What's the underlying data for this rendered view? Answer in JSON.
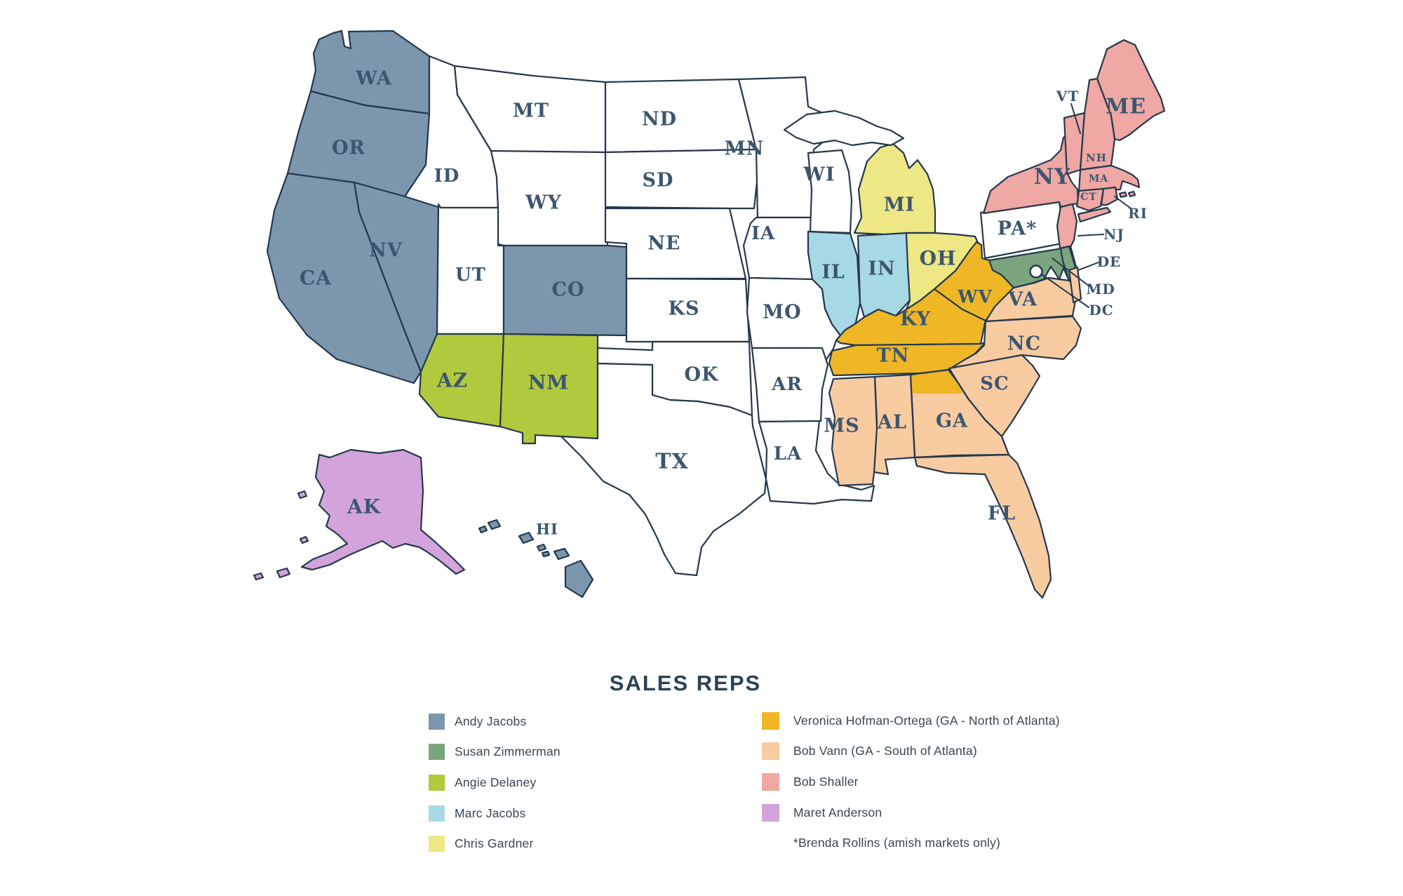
{
  "legend": {
    "title": "SALES REPS",
    "footnote": "*Brenda Rollins (amish markets only)"
  },
  "reps": {
    "andy": {
      "name": "Andy Jacobs",
      "color": "#7B96AD"
    },
    "susan": {
      "name": "Susan Zimmerman",
      "color": "#7BA57E"
    },
    "angie": {
      "name": "Angie Delaney",
      "color": "#B0CA3E"
    },
    "marc": {
      "name": "Marc Jacobs",
      "color": "#A7D8E5"
    },
    "chris": {
      "name": "Chris Gardner",
      "color": "#EEE884"
    },
    "veronica": {
      "name": "Veronica Hofman-Ortega (GA - North of Atlanta)",
      "color": "#EFB726"
    },
    "bobvann": {
      "name": "Bob Vann (GA - South of Atlanta)",
      "color": "#F8CBA1"
    },
    "bobshaller": {
      "name": "Bob Shaller",
      "color": "#EFA8A3"
    },
    "maret": {
      "name": "Maret Anderson",
      "color": "#D2A4DB"
    }
  },
  "map": {
    "border_color": "#24384E",
    "label_color": "#3C566F",
    "white_fill": "#FFFFFF",
    "states": [
      {
        "id": "WA",
        "label": "WA",
        "rep": "andy"
      },
      {
        "id": "OR",
        "label": "OR",
        "rep": "andy"
      },
      {
        "id": "CA",
        "label": "CA",
        "rep": "andy"
      },
      {
        "id": "NV",
        "label": "NV",
        "rep": "andy"
      },
      {
        "id": "ID",
        "label": "ID",
        "rep": null
      },
      {
        "id": "MT",
        "label": "MT",
        "rep": null
      },
      {
        "id": "WY",
        "label": "WY",
        "rep": null
      },
      {
        "id": "UT",
        "label": "UT",
        "rep": null
      },
      {
        "id": "CO",
        "label": "CO",
        "rep": "andy"
      },
      {
        "id": "AZ",
        "label": "AZ",
        "rep": "angie"
      },
      {
        "id": "NM",
        "label": "NM",
        "rep": "angie"
      },
      {
        "id": "ND",
        "label": "ND",
        "rep": null
      },
      {
        "id": "SD",
        "label": "SD",
        "rep": null
      },
      {
        "id": "NE",
        "label": "NE",
        "rep": null
      },
      {
        "id": "KS",
        "label": "KS",
        "rep": null
      },
      {
        "id": "OK",
        "label": "OK",
        "rep": null
      },
      {
        "id": "TX",
        "label": "TX",
        "rep": null
      },
      {
        "id": "MN",
        "label": "MN",
        "rep": null
      },
      {
        "id": "IA",
        "label": "IA",
        "rep": null
      },
      {
        "id": "MO",
        "label": "MO",
        "rep": null
      },
      {
        "id": "AR",
        "label": "AR",
        "rep": null
      },
      {
        "id": "LA",
        "label": "LA",
        "rep": null
      },
      {
        "id": "WI",
        "label": "WI",
        "rep": null
      },
      {
        "id": "IL",
        "label": "IL",
        "rep": "marc"
      },
      {
        "id": "IN",
        "label": "IN",
        "rep": "marc"
      },
      {
        "id": "MI",
        "label": "MI",
        "rep": "chris"
      },
      {
        "id": "OH",
        "label": "OH",
        "rep": "chris"
      },
      {
        "id": "KY",
        "label": "KY",
        "rep": "veronica"
      },
      {
        "id": "TN",
        "label": "TN",
        "rep": "veronica"
      },
      {
        "id": "WV",
        "label": "WV",
        "rep": "veronica"
      },
      {
        "id": "VA",
        "label": "VA",
        "rep": "bobvann"
      },
      {
        "id": "NC",
        "label": "NC",
        "rep": "bobvann"
      },
      {
        "id": "SC",
        "label": "SC",
        "rep": "bobvann"
      },
      {
        "id": "GA",
        "label": "GA",
        "rep": "bobvann"
      },
      {
        "id": "AL",
        "label": "AL",
        "rep": "bobvann"
      },
      {
        "id": "MS",
        "label": "MS",
        "rep": "bobvann"
      },
      {
        "id": "FL",
        "label": "FL",
        "rep": "bobvann"
      },
      {
        "id": "PA",
        "label": "PA*",
        "rep": null
      },
      {
        "id": "NY",
        "label": "NY",
        "rep": "bobshaller"
      },
      {
        "id": "NJ",
        "label": "",
        "rep": "bobshaller"
      },
      {
        "id": "VT",
        "label": "",
        "rep": "bobshaller"
      },
      {
        "id": "NH",
        "label": "NH",
        "rep": "bobshaller"
      },
      {
        "id": "ME",
        "label": "ME",
        "rep": "bobshaller"
      },
      {
        "id": "MA",
        "label": "MA",
        "rep": "bobshaller"
      },
      {
        "id": "CT",
        "label": "CT",
        "rep": "bobshaller"
      },
      {
        "id": "RI",
        "label": "",
        "rep": "bobshaller"
      },
      {
        "id": "MD",
        "label": "",
        "rep": "susan"
      },
      {
        "id": "DE",
        "label": "",
        "rep": "susan"
      },
      {
        "id": "AK",
        "label": "AK",
        "rep": "maret"
      },
      {
        "id": "HI",
        "label": "HI",
        "rep": "andy"
      }
    ],
    "callouts": [
      {
        "id": "VT",
        "label": "VT"
      },
      {
        "id": "RI",
        "label": "RI"
      },
      {
        "id": "NJ",
        "label": "NJ"
      },
      {
        "id": "DE",
        "label": "DE"
      },
      {
        "id": "MD",
        "label": "MD"
      },
      {
        "id": "DC",
        "label": "DC"
      }
    ]
  }
}
